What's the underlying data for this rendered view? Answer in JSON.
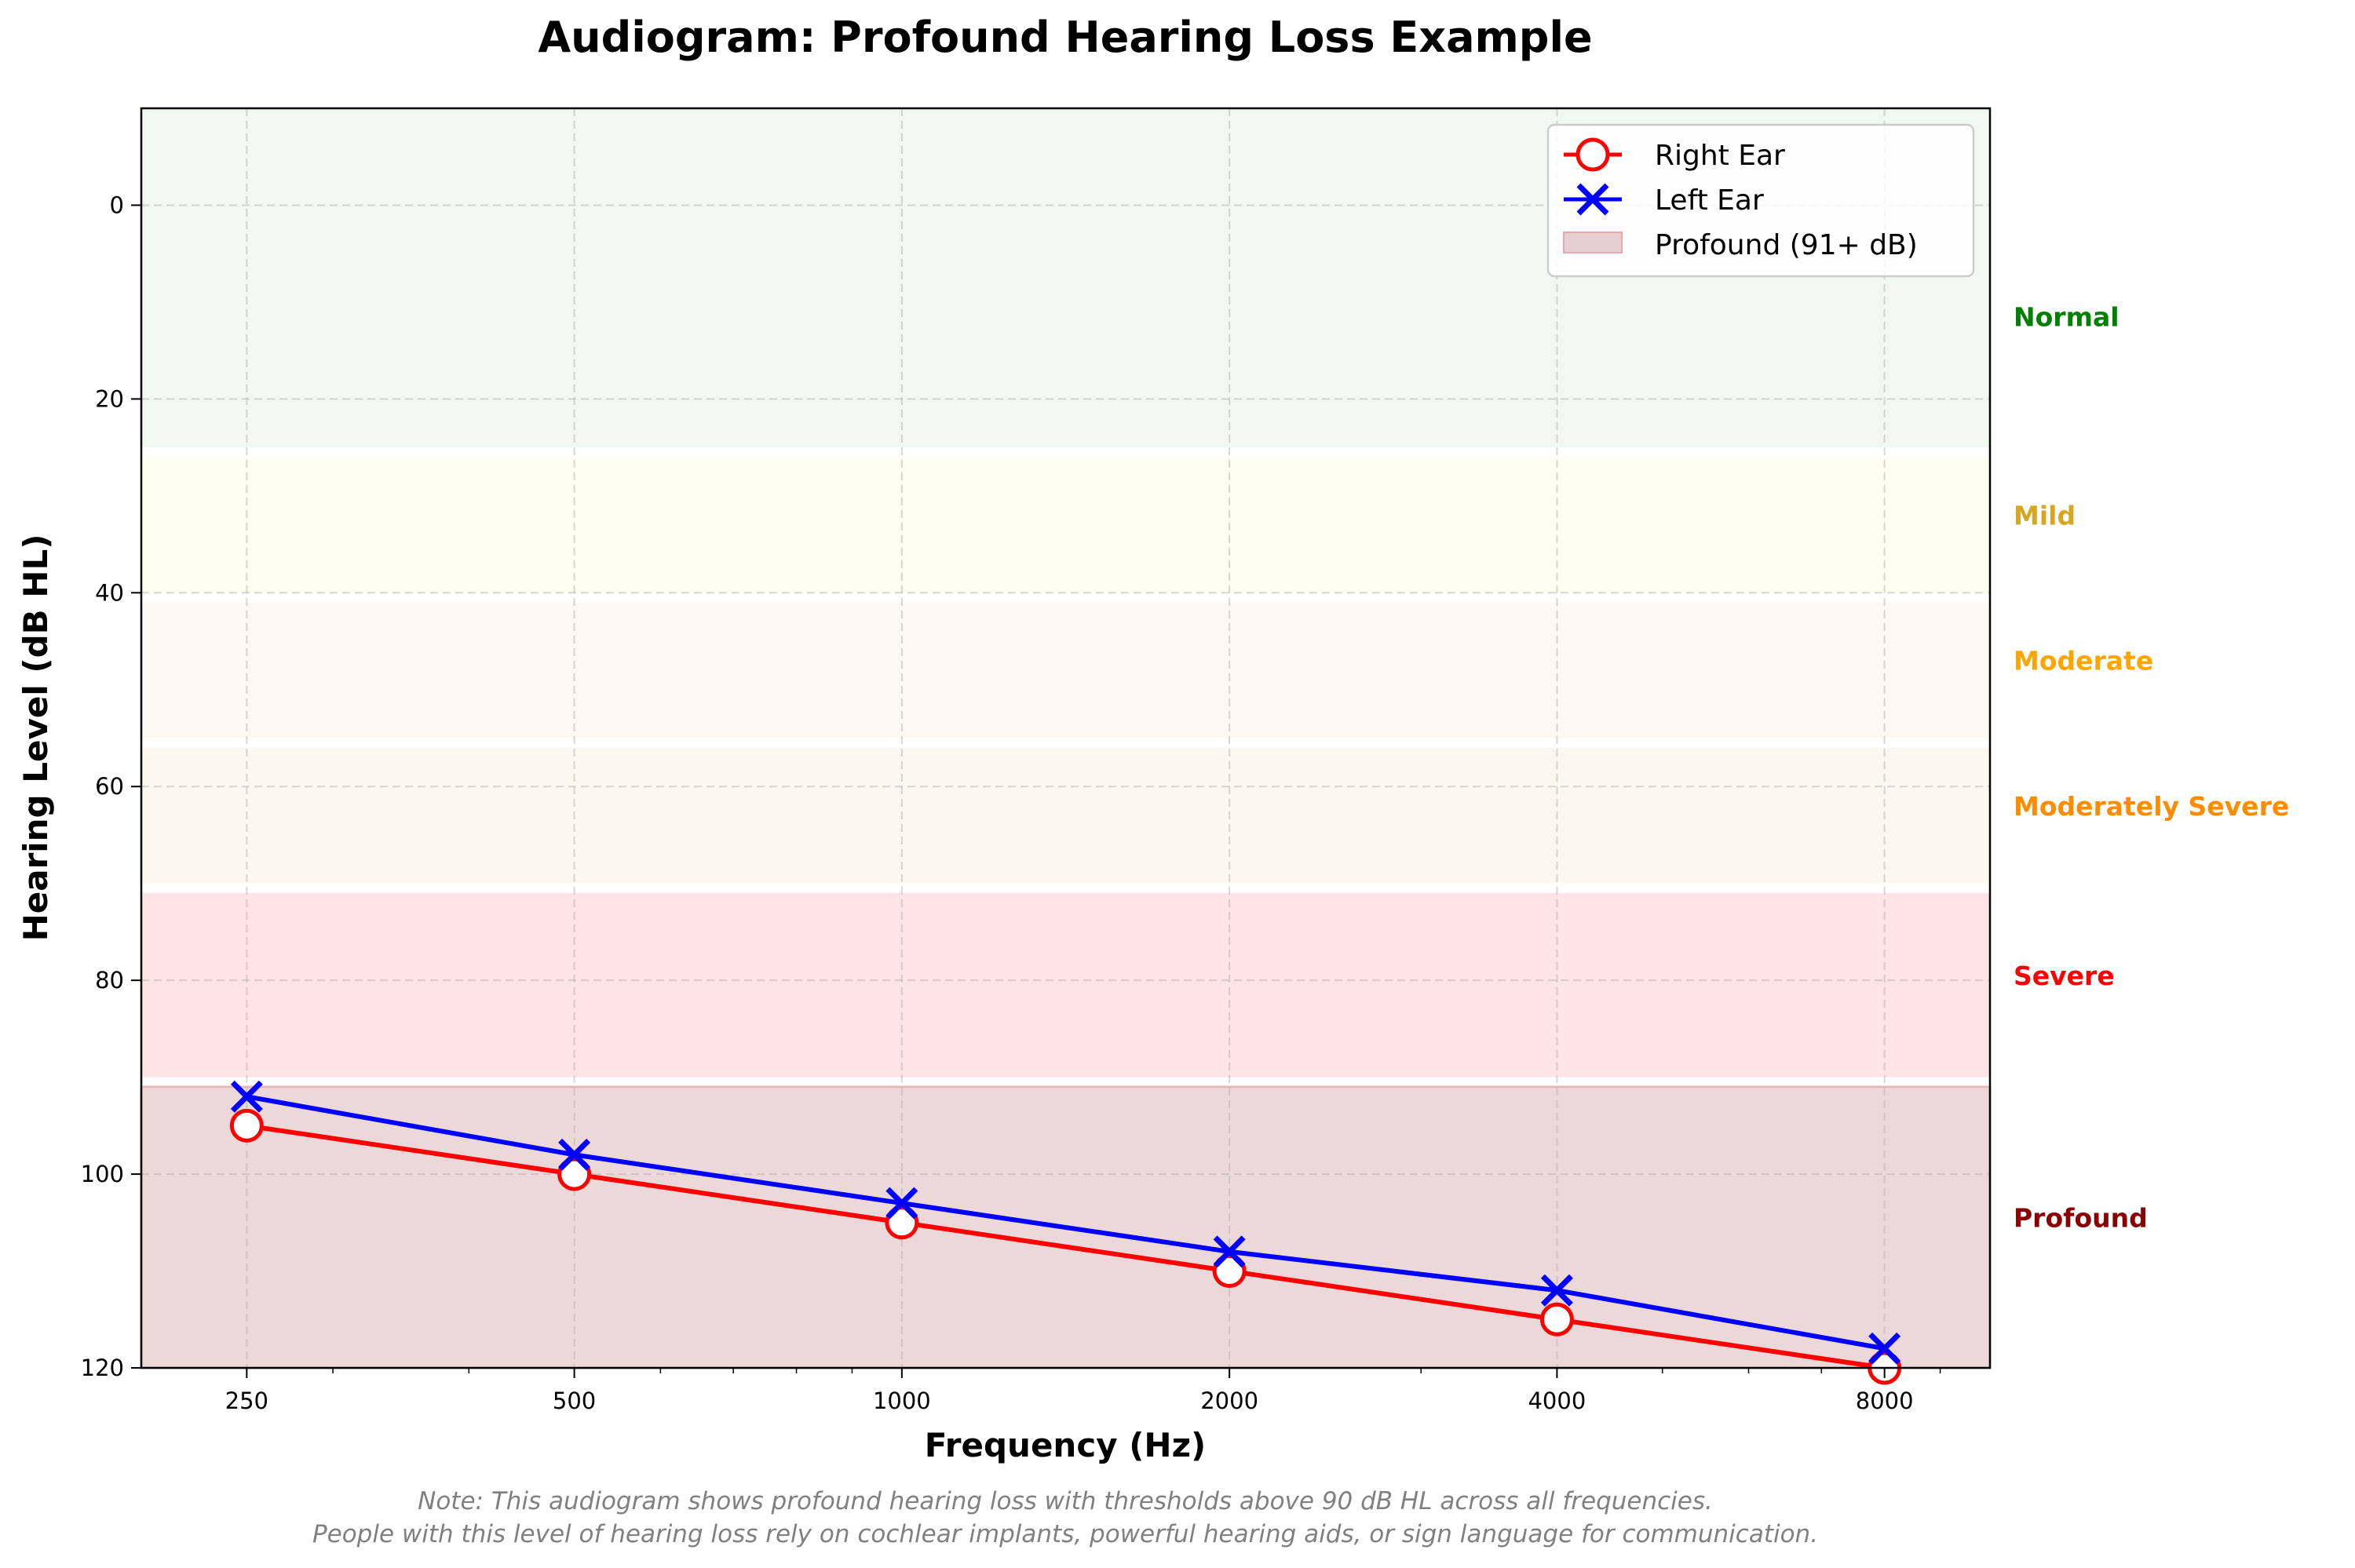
{
  "chart_data": {
    "type": "line",
    "title": "Audiogram: Profound Hearing Loss Example",
    "xlabel": "Frequency (Hz)",
    "ylabel": "Hearing Level (dB HL)",
    "x_scale": "log",
    "y_inverted": true,
    "xlim": [
      200,
      10000
    ],
    "ylim": [
      -10,
      120
    ],
    "x": [
      250,
      500,
      1000,
      2000,
      4000,
      8000
    ],
    "x_tick_labels": [
      "250",
      "500",
      "1000",
      "2000",
      "4000",
      "8000"
    ],
    "y_ticks": [
      0,
      20,
      40,
      60,
      80,
      100,
      120
    ],
    "y_tick_labels": [
      "0",
      "20",
      "40",
      "60",
      "80",
      "100",
      "120"
    ],
    "grid": true,
    "series": [
      {
        "name": "Right Ear",
        "values": [
          95,
          100,
          105,
          110,
          115,
          120
        ],
        "color": "#ff0000",
        "marker": "circle-open"
      },
      {
        "name": "Left Ear",
        "values": [
          92,
          98,
          103,
          108,
          112,
          118
        ],
        "color": "#0000ff",
        "marker": "x"
      }
    ],
    "bands": [
      {
        "label": "Normal",
        "range": [
          -10,
          25
        ],
        "fill": "#f1f8f1",
        "label_color": "#008000"
      },
      {
        "label": "Mild",
        "range": [
          26,
          40
        ],
        "fill": "#fffff0",
        "label_color": "#daa520"
      },
      {
        "label": "Moderate",
        "range": [
          41,
          55
        ],
        "fill": "#fdf8f1",
        "label_color": "#ffa500"
      },
      {
        "label": "Moderately Severe",
        "range": [
          56,
          70
        ],
        "fill": "#fdf7f0",
        "label_color": "#ff8c00"
      },
      {
        "label": "Severe",
        "range": [
          71,
          90
        ],
        "fill": "#fee4e4",
        "label_color": "#ff0000"
      },
      {
        "label": "Profound",
        "range": [
          91,
          120
        ],
        "fill": "#ecd8d9",
        "label_color": "#8b0000"
      }
    ],
    "legend": {
      "position": "top-right",
      "entries": [
        "Right Ear",
        "Left Ear",
        "Profound (91+ dB)"
      ]
    },
    "note": [
      "Note: This audiogram shows profound hearing loss with thresholds above 90 dB HL across all frequencies.",
      "People with this level of hearing loss rely on cochlear implants, powerful hearing aids, or sign language for communication."
    ]
  }
}
